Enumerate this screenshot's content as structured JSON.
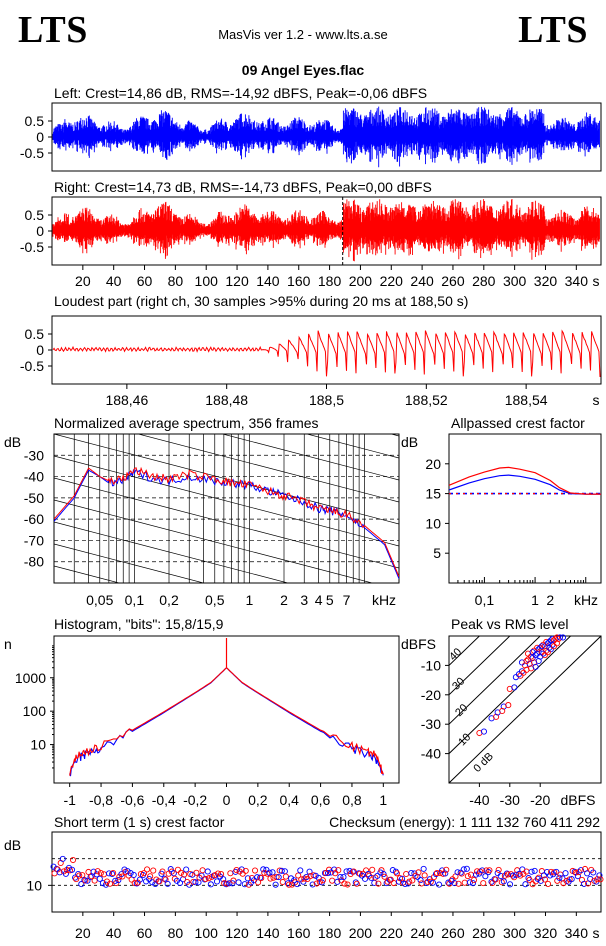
{
  "header": {
    "logo_left": "LTS",
    "logo_right": "LTS",
    "app": "MasVis ver 1.2 - www.lts.a.se",
    "file": "09 Angel Eyes.flac"
  },
  "colors": {
    "left": "#0000ff",
    "right": "#ff0000",
    "grid": "#000000"
  },
  "chart_data": [
    {
      "type": "line",
      "id": "left_wave",
      "title": "Left: Crest=14,86 dB, RMS=-14,92 dBFS, Peak=-0,06 dBFS",
      "ylim": [
        -1,
        1
      ],
      "xlim": [
        0,
        356
      ],
      "y_ticks": [
        "0.5",
        "0",
        "-0.5"
      ],
      "envelope_max": 0.95
    },
    {
      "type": "line",
      "id": "right_wave",
      "title": "Right: Crest=14,73 dB, RMS=-14,73 dBFS, Peak=0,00 dBFS",
      "ylim": [
        -1,
        1
      ],
      "xlim": [
        0,
        356
      ],
      "y_ticks": [
        "0.5",
        "0",
        "-0.5"
      ],
      "x_ticks": [
        "20",
        "40",
        "60",
        "80",
        "100",
        "120",
        "140",
        "160",
        "180",
        "200",
        "220",
        "240",
        "260",
        "280",
        "300",
        "320",
        "340"
      ],
      "x_unit": "s",
      "marker_x": 188.5,
      "envelope_max": 1.0
    },
    {
      "type": "line",
      "id": "loudest",
      "title": "Loudest part (right ch, 30 samples >95% during 20 ms at 188,50 s)",
      "ylim": [
        -1,
        1
      ],
      "xlim": [
        188.445,
        188.555
      ],
      "y_ticks": [
        "0.5",
        "0",
        "-0.5"
      ],
      "x_ticks": [
        "188,46",
        "188,48",
        "188,5",
        "188,52",
        "188,54"
      ],
      "x_unit": "s"
    },
    {
      "type": "line",
      "id": "spectrum",
      "title": "Normalized average spectrum, 356 frames",
      "ylabel": "dB",
      "ylim": [
        -90,
        -20
      ],
      "y_ticks": [
        "-30",
        "-40",
        "-50",
        "-60",
        "-70",
        "-80"
      ],
      "x_ticks": [
        "0,05",
        "0,1",
        "0,2",
        "0,5",
        "1",
        "2",
        "3",
        "4",
        "5",
        "7"
      ],
      "x_unit": "kHz",
      "x": [
        0.02,
        0.03,
        0.04,
        0.05,
        0.06,
        0.08,
        0.1,
        0.15,
        0.2,
        0.3,
        0.5,
        0.7,
        1,
        1.5,
        2,
        3,
        4,
        5,
        7,
        10,
        15,
        20
      ],
      "series": [
        {
          "color": "left",
          "values": [
            -61,
            -50,
            -37,
            -40,
            -43,
            -42,
            -38,
            -41,
            -42,
            -40,
            -42,
            -43,
            -44,
            -47,
            -49,
            -52,
            -55,
            -56,
            -58,
            -64,
            -72,
            -88
          ]
        },
        {
          "color": "right",
          "values": [
            -60,
            -49,
            -36,
            -40,
            -42,
            -41,
            -37,
            -40,
            -41,
            -39,
            -41,
            -43,
            -44,
            -47,
            -49,
            -52,
            -55,
            -56,
            -58,
            -63,
            -71,
            -87
          ]
        }
      ]
    },
    {
      "type": "line",
      "id": "allpassed",
      "title": "Allpassed crest factor",
      "ylabel": "dB",
      "ylim": [
        0,
        25
      ],
      "y_ticks": [
        "20",
        "15",
        "10",
        "5"
      ],
      "x_ticks": [
        "0,1",
        "1",
        "2"
      ],
      "x_unit": "kHz",
      "x": [
        0.02,
        0.05,
        0.1,
        0.2,
        0.3,
        0.5,
        1,
        2,
        3,
        5,
        10,
        20
      ],
      "series": [
        {
          "color": "left",
          "values": [
            15.6,
            16.8,
            17.5,
            18.0,
            18.1,
            17.9,
            17.4,
            16.5,
            15.6,
            15.0,
            14.9,
            14.9
          ]
        },
        {
          "color": "right",
          "values": [
            16.4,
            17.8,
            18.6,
            19.3,
            19.4,
            19.1,
            18.5,
            17.2,
            16.0,
            15.1,
            14.9,
            14.9
          ]
        }
      ],
      "ref_line": 15
    },
    {
      "type": "line",
      "id": "histogram",
      "title": "Histogram, \"bits\": 15,8/15,9",
      "ylabel": "n",
      "y_scale": "log",
      "y_ticks": [
        "1000",
        "100",
        "10"
      ],
      "x_ticks": [
        "-1",
        "-0,8",
        "-0,6",
        "-0,4",
        "-0,2",
        "0",
        "0,2",
        "0,4",
        "0,6",
        "0,8",
        "1"
      ],
      "x": [
        -1,
        -0.95,
        -0.9,
        -0.8,
        -0.6,
        -0.4,
        -0.2,
        -0.1,
        0,
        0.1,
        0.2,
        0.4,
        0.6,
        0.8,
        0.9,
        0.95,
        1
      ],
      "series": [
        {
          "color": "left",
          "values": [
            1.2,
            4,
            5,
            8,
            25,
            90,
            350,
            700,
            2000,
            700,
            350,
            90,
            25,
            8,
            5,
            4,
            1.2
          ]
        },
        {
          "color": "right",
          "values": [
            1.3,
            5,
            6,
            9,
            27,
            95,
            360,
            720,
            2000,
            720,
            360,
            95,
            27,
            9,
            6,
            5,
            1.3
          ]
        }
      ]
    },
    {
      "type": "scatter",
      "id": "peak_rms",
      "title": "Peak vs RMS level",
      "ylabel": "dBFS",
      "xlabel": "dBFS",
      "xlim": [
        -50,
        0
      ],
      "ylim": [
        -50,
        0
      ],
      "y_ticks": [
        "-10",
        "-20",
        "-30",
        "-40"
      ],
      "x_ticks": [
        "-40",
        "-30",
        "-20"
      ],
      "diag_labels": [
        "40",
        "30",
        "20",
        "10",
        "0 dB"
      ],
      "points": [
        [
          -22,
          -5
        ],
        [
          -20,
          -4
        ],
        [
          -18,
          -2
        ],
        [
          -16,
          -1
        ],
        [
          -24,
          -8
        ],
        [
          -26,
          -12
        ],
        [
          -23,
          -7
        ],
        [
          -21,
          -6
        ],
        [
          -19,
          -3
        ],
        [
          -17,
          -2
        ],
        [
          -25,
          -10
        ],
        [
          -28,
          -14
        ],
        [
          -30,
          -18
        ],
        [
          -32,
          -24
        ],
        [
          -22,
          -9
        ],
        [
          -20,
          -7
        ],
        [
          -18,
          -5
        ],
        [
          -16,
          -3
        ],
        [
          -15,
          -1
        ],
        [
          -27,
          -13
        ],
        [
          -21,
          -4
        ],
        [
          -19,
          -6
        ],
        [
          -23,
          -11
        ],
        [
          -36,
          -28
        ],
        [
          -40,
          -33
        ],
        [
          -34,
          -26
        ],
        [
          -24,
          -6
        ],
        [
          -17,
          -4
        ],
        [
          -14,
          -1
        ],
        [
          -26,
          -9
        ]
      ]
    },
    {
      "type": "scatter",
      "id": "short_crest",
      "title": "Short term (1 s) crest factor",
      "checksum": "Checksum (energy):  1 111 132 760 411 292",
      "ylabel": "dB",
      "y_ticks": [
        "10"
      ],
      "x_ticks": [
        "20",
        "40",
        "60",
        "80",
        "100",
        "120",
        "140",
        "160",
        "180",
        "200",
        "220",
        "240",
        "260",
        "280",
        "300",
        "320",
        "340"
      ],
      "x_unit": "s",
      "xlim": [
        0,
        356
      ],
      "ylim": [
        5,
        20
      ],
      "mean_db": 11.6
    }
  ]
}
